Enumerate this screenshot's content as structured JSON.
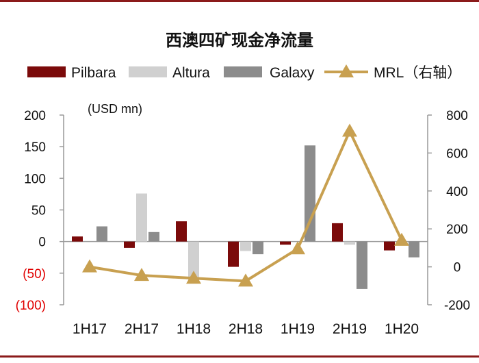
{
  "chart_data": {
    "type": "bar",
    "title": "西澳四矿现金净流量",
    "unit_label": "(USD mn)",
    "categories": [
      "1H17",
      "2H17",
      "1H18",
      "2H18",
      "1H19",
      "2H19",
      "1H20"
    ],
    "series": [
      {
        "name": "Pilbara",
        "type": "bar",
        "axis": "left",
        "color": "#7b0a0a",
        "values": [
          8,
          -10,
          32,
          -40,
          -5,
          29,
          -14
        ]
      },
      {
        "name": "Altura",
        "type": "bar",
        "axis": "left",
        "color": "#d0d0d0",
        "values": [
          0,
          76,
          -62,
          -15,
          0,
          -5,
          0
        ]
      },
      {
        "name": "Galaxy",
        "type": "bar",
        "axis": "left",
        "color": "#8c8c8c",
        "values": [
          24,
          15,
          0,
          -20,
          152,
          -75,
          -25
        ]
      },
      {
        "name": "MRL（右轴）",
        "type": "line",
        "axis": "right",
        "color": "#c8a050",
        "values": [
          0,
          -45,
          -60,
          -75,
          95,
          715,
          140
        ]
      }
    ],
    "left_axis": {
      "ylim": [
        -100,
        200
      ],
      "ticks": [
        {
          "value": 200,
          "label": "200"
        },
        {
          "value": 150,
          "label": "150"
        },
        {
          "value": 100,
          "label": "100"
        },
        {
          "value": 50,
          "label": "50"
        },
        {
          "value": 0,
          "label": "0"
        },
        {
          "value": -50,
          "label": "(50)"
        },
        {
          "value": -100,
          "label": "(100)"
        }
      ]
    },
    "right_axis": {
      "ylim": [
        -200,
        800
      ],
      "ticks": [
        {
          "value": 800,
          "label": "800"
        },
        {
          "value": 600,
          "label": "600"
        },
        {
          "value": 400,
          "label": "400"
        },
        {
          "value": 200,
          "label": "200"
        },
        {
          "value": 0,
          "label": "0"
        },
        {
          "value": -200,
          "label": "-200"
        }
      ]
    },
    "negative_label_color": "#e00000",
    "grid": false,
    "legend_position": "top"
  }
}
